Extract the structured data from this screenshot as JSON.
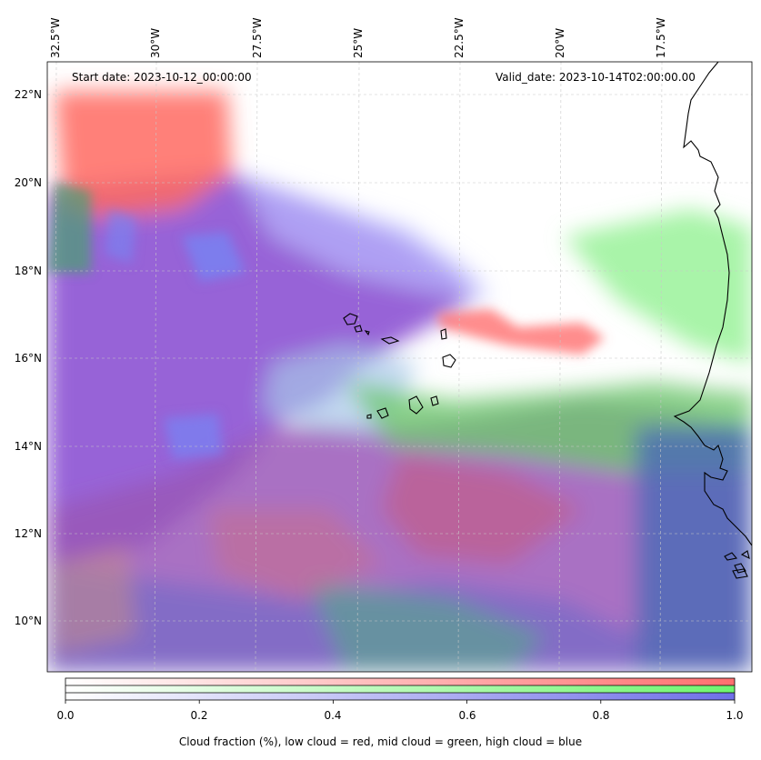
{
  "map": {
    "start_date": "Start date: 2023-10-12_00:00:00",
    "valid_date": "Valid_date: 2023-10-14T02:00:00.00",
    "lon_labels": [
      "32.5°W",
      "30°W",
      "27.5°W",
      "25°W",
      "22.5°W",
      "20°W",
      "17.5°W"
    ],
    "lat_labels": [
      "22°N",
      "20°N",
      "18°N",
      "16°N",
      "14°N",
      "12°N",
      "10°N"
    ],
    "colors": {
      "low_cloud": "#ff7a6a",
      "mid_cloud": "#7dff7d",
      "high_cloud": "#7f7fff",
      "mixed_low_high": "#8a4fd0",
      "coastline": "#000000",
      "gridline": "#b0b0b0"
    }
  },
  "colorbar": {
    "ticks": [
      "0.0",
      "0.2",
      "0.4",
      "0.6",
      "0.8",
      "1.0"
    ],
    "caption": "Cloud fraction (%), low cloud = red, mid cloud = green, high cloud = blue"
  }
}
